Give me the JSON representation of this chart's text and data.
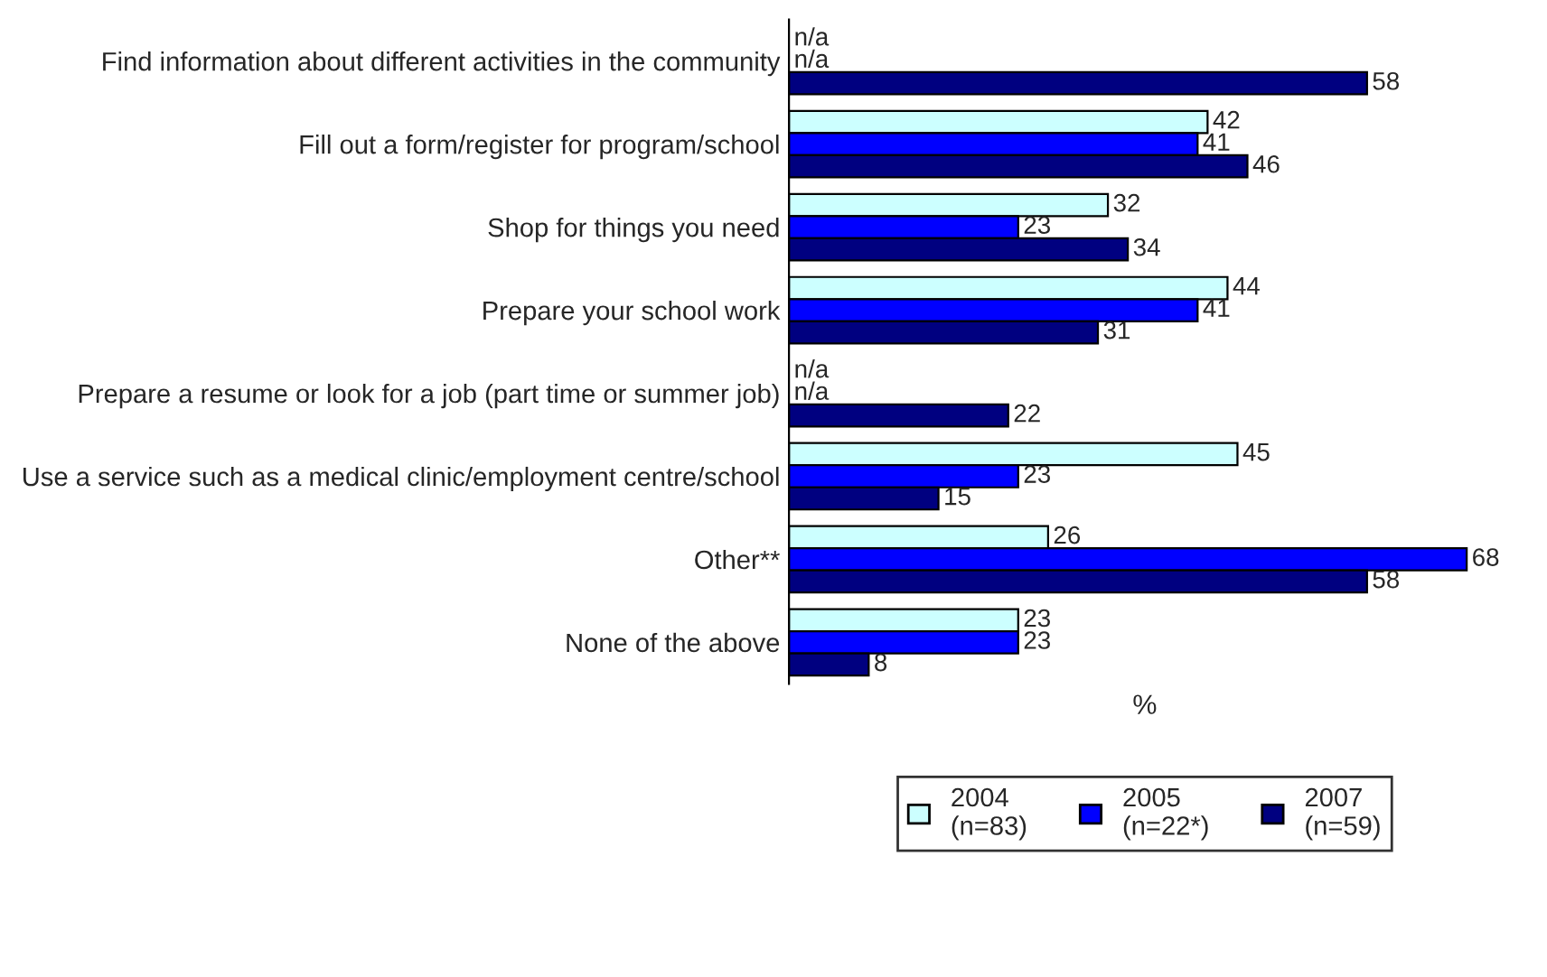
{
  "chart_data": {
    "type": "bar",
    "orientation": "horizontal",
    "xlabel": "%",
    "categories": [
      "Find information about different activities in the community",
      "Fill out a form/register for program/school",
      "Shop for things you need",
      "Prepare your school work",
      "Prepare a resume or look for a job (part time or summer job)",
      "Use a service such as a medical clinic/employment centre/school",
      "Other**",
      "None of the above"
    ],
    "series": [
      {
        "name": "2004\n(n=83)",
        "color": "#ccffff",
        "values": [
          null,
          42,
          32,
          44,
          null,
          45,
          26,
          23
        ],
        "value_labels": [
          "n/a",
          "42",
          "32",
          "44",
          "n/a",
          "45",
          "26",
          "23"
        ]
      },
      {
        "name": "2005\n(n=22*)",
        "color": "#0000ff",
        "values": [
          null,
          41,
          23,
          41,
          null,
          23,
          68,
          23
        ],
        "value_labels": [
          "n/a",
          "41",
          "23",
          "41",
          "n/a",
          "23",
          "68",
          "23"
        ]
      },
      {
        "name": "2007\n(n=59)",
        "color": "#000080",
        "values": [
          58,
          46,
          34,
          31,
          22,
          15,
          58,
          8
        ],
        "value_labels": [
          "58",
          "46",
          "34",
          "31",
          "22",
          "15",
          "58",
          "8"
        ]
      }
    ],
    "legend": "bottom",
    "grid": false,
    "tick_labels": "y"
  }
}
